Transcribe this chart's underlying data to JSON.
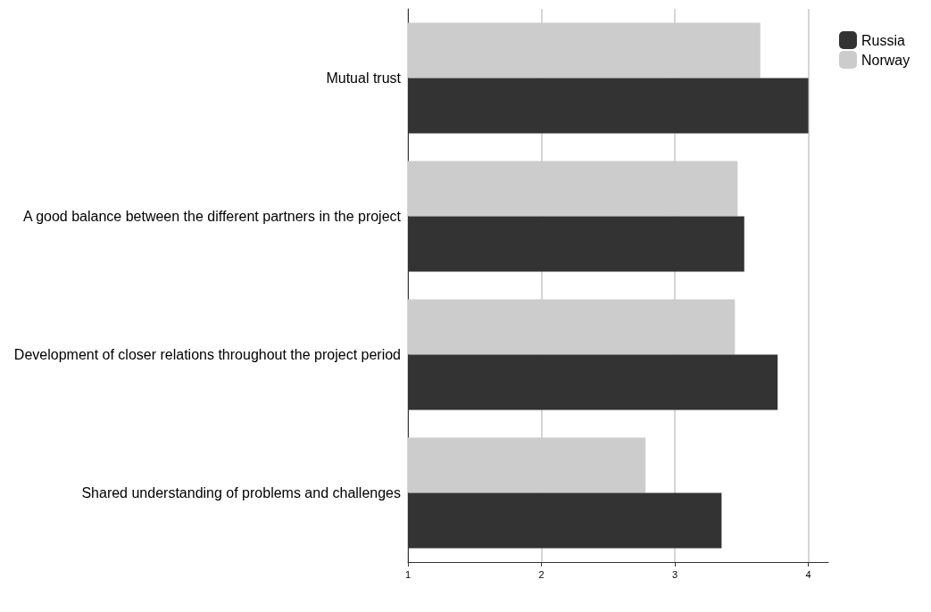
{
  "chart_data": {
    "type": "bar",
    "orientation": "horizontal",
    "categories": [
      "Mutual trust",
      "A good balance between the different partners in the project",
      "Development of closer relations throughout the project period",
      "Shared understanding of problems and challenges"
    ],
    "series": [
      {
        "name": "Russia",
        "color": "#333333",
        "values": [
          4.0,
          3.52,
          3.77,
          3.35
        ]
      },
      {
        "name": "Norway",
        "color": "#cccccc",
        "values": [
          3.64,
          3.47,
          3.45,
          2.78
        ]
      }
    ],
    "xlim": [
      1,
      4.15
    ],
    "xticks": [
      1,
      2,
      3,
      4
    ],
    "grid": "x",
    "legend": "top right"
  }
}
